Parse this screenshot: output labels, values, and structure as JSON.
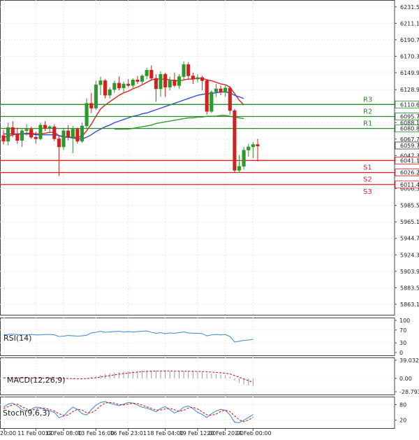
{
  "chart_data": [
    {
      "type": "candlestick",
      "panel": "price",
      "title": "",
      "ylim": [
        5850,
        6240
      ],
      "y_ticks": [
        "6231.50",
        "6211.10",
        "6190.70",
        "6170.30",
        "6149.90",
        "6128.90",
        "6108.50",
        "6088.10",
        "6067.70",
        "6047.30",
        "6026.90",
        "6006.50",
        "5985.50",
        "5965.10",
        "5944.70",
        "5924.30",
        "5903.90",
        "5883.50",
        "5863.10"
      ],
      "y_tick_values": [
        6231.5,
        6211.1,
        6190.7,
        6170.3,
        6149.9,
        6128.9,
        6108.5,
        6088.1,
        6067.7,
        6047.3,
        6026.9,
        6006.5,
        5985.5,
        5965.1,
        5944.7,
        5924.3,
        5903.9,
        5883.5,
        5863.1
      ],
      "x_ticks": [
        "20:00",
        "11 Feb 00:00",
        "12 Feb 08:00",
        "13 Feb 16:00",
        "16 Feb 23:01",
        "18 Feb 04:00",
        "19 Feb 12:00",
        "20 Feb 20:00",
        "24 Feb 00:00"
      ],
      "candles": [
        {
          "o": 6072,
          "h": 6079,
          "l": 6061,
          "c": 6065
        },
        {
          "o": 6065,
          "h": 6088,
          "l": 6060,
          "c": 6082
        },
        {
          "o": 6082,
          "h": 6090,
          "l": 6070,
          "c": 6074
        },
        {
          "o": 6074,
          "h": 6082,
          "l": 6062,
          "c": 6066
        },
        {
          "o": 6066,
          "h": 6080,
          "l": 6058,
          "c": 6078
        },
        {
          "o": 6078,
          "h": 6086,
          "l": 6072,
          "c": 6080
        },
        {
          "o": 6080,
          "h": 6083,
          "l": 6068,
          "c": 6070
        },
        {
          "o": 6070,
          "h": 6077,
          "l": 6062,
          "c": 6068
        },
        {
          "o": 6068,
          "h": 6088,
          "l": 6066,
          "c": 6085
        },
        {
          "o": 6085,
          "h": 6090,
          "l": 6078,
          "c": 6081
        },
        {
          "o": 6081,
          "h": 6085,
          "l": 6075,
          "c": 6083
        },
        {
          "o": 6083,
          "h": 6086,
          "l": 6065,
          "c": 6068
        },
        {
          "o": 6068,
          "h": 6072,
          "l": 6022,
          "c": 6058
        },
        {
          "o": 6058,
          "h": 6082,
          "l": 6054,
          "c": 6078
        },
        {
          "o": 6078,
          "h": 6085,
          "l": 6066,
          "c": 6070
        },
        {
          "o": 6070,
          "h": 6084,
          "l": 6050,
          "c": 6080
        },
        {
          "o": 6080,
          "h": 6082,
          "l": 6062,
          "c": 6065
        },
        {
          "o": 6065,
          "h": 6088,
          "l": 6063,
          "c": 6084
        },
        {
          "o": 6084,
          "h": 6118,
          "l": 6080,
          "c": 6112
        },
        {
          "o": 6112,
          "h": 6125,
          "l": 6100,
          "c": 6106
        },
        {
          "o": 6106,
          "h": 6140,
          "l": 6104,
          "c": 6135
        },
        {
          "o": 6135,
          "h": 6145,
          "l": 6122,
          "c": 6140
        },
        {
          "o": 6140,
          "h": 6142,
          "l": 6118,
          "c": 6122
        },
        {
          "o": 6122,
          "h": 6132,
          "l": 6118,
          "c": 6129
        },
        {
          "o": 6129,
          "h": 6140,
          "l": 6125,
          "c": 6137
        },
        {
          "o": 6137,
          "h": 6145,
          "l": 6128,
          "c": 6131
        },
        {
          "o": 6131,
          "h": 6139,
          "l": 6126,
          "c": 6136
        },
        {
          "o": 6136,
          "h": 6142,
          "l": 6132,
          "c": 6134
        },
        {
          "o": 6134,
          "h": 6143,
          "l": 6131,
          "c": 6141
        },
        {
          "o": 6141,
          "h": 6146,
          "l": 6136,
          "c": 6139
        },
        {
          "o": 6139,
          "h": 6148,
          "l": 6136,
          "c": 6146
        },
        {
          "o": 6146,
          "h": 6156,
          "l": 6142,
          "c": 6153
        },
        {
          "o": 6153,
          "h": 6159,
          "l": 6140,
          "c": 6143
        },
        {
          "o": 6143,
          "h": 6148,
          "l": 6114,
          "c": 6130
        },
        {
          "o": 6130,
          "h": 6152,
          "l": 6120,
          "c": 6148
        },
        {
          "o": 6148,
          "h": 6150,
          "l": 6120,
          "c": 6132
        },
        {
          "o": 6132,
          "h": 6145,
          "l": 6128,
          "c": 6141
        },
        {
          "o": 6141,
          "h": 6150,
          "l": 6132,
          "c": 6134
        },
        {
          "o": 6134,
          "h": 6148,
          "l": 6130,
          "c": 6145
        },
        {
          "o": 6145,
          "h": 6164,
          "l": 6140,
          "c": 6160
        },
        {
          "o": 6160,
          "h": 6163,
          "l": 6142,
          "c": 6146
        },
        {
          "o": 6146,
          "h": 6150,
          "l": 6136,
          "c": 6142
        },
        {
          "o": 6142,
          "h": 6148,
          "l": 6138,
          "c": 6144
        },
        {
          "o": 6144,
          "h": 6146,
          "l": 6128,
          "c": 6140
        },
        {
          "o": 6140,
          "h": 6142,
          "l": 6098,
          "c": 6102
        },
        {
          "o": 6102,
          "h": 6128,
          "l": 6100,
          "c": 6126
        },
        {
          "o": 6126,
          "h": 6136,
          "l": 6120,
          "c": 6130
        },
        {
          "o": 6130,
          "h": 6134,
          "l": 6122,
          "c": 6126
        },
        {
          "o": 6126,
          "h": 6134,
          "l": 6120,
          "c": 6131
        },
        {
          "o": 6131,
          "h": 6133,
          "l": 6098,
          "c": 6103
        },
        {
          "o": 6103,
          "h": 6105,
          "l": 6026,
          "c": 6029
        },
        {
          "o": 6029,
          "h": 6048,
          "l": 6026,
          "c": 6034
        },
        {
          "o": 6034,
          "h": 6058,
          "l": 6030,
          "c": 6054
        },
        {
          "o": 6054,
          "h": 6062,
          "l": 6046,
          "c": 6058
        },
        {
          "o": 6058,
          "h": 6064,
          "l": 6044,
          "c": 6061
        },
        {
          "o": 6061,
          "h": 6068,
          "l": 6040,
          "c": 6059
        }
      ],
      "ma_series": [
        {
          "color": "#e02020",
          "values": [
            6070,
            6071,
            6073,
            6074,
            6074,
            6075,
            6075,
            6074,
            6074,
            6075,
            6076,
            6076,
            6072,
            6070,
            6070,
            6070,
            6070,
            6071,
            6078,
            6086,
            6096,
            6105,
            6110,
            6114,
            6118,
            6122,
            6125,
            6127,
            6130,
            6132,
            6135,
            6138,
            6141,
            6142,
            6142,
            6142,
            6141,
            6140,
            6140,
            6141,
            6142,
            6142,
            6143,
            6143,
            6141,
            6140,
            6138,
            6136,
            6135,
            6132,
            6124,
            6116,
            6110
          ]
        },
        {
          "color": "#3050d0",
          "values": [
            6074,
            6074,
            6074,
            6074,
            6074,
            6074,
            6074,
            6073,
            6073,
            6073,
            6073,
            6073,
            6072,
            6071,
            6070,
            6069,
            6068,
            6068,
            6070,
            6073,
            6077,
            6080,
            6083,
            6085,
            6088,
            6090,
            6092,
            6094,
            6096,
            6097,
            6099,
            6100,
            6102,
            6104,
            6106,
            6108,
            6110,
            6112,
            6114,
            6116,
            6118,
            6120,
            6122,
            6123,
            6124,
            6124,
            6125,
            6126,
            6126,
            6125,
            6122,
            6120,
            6118
          ]
        },
        {
          "color": "#30a030",
          "values": [
            null,
            null,
            null,
            null,
            null,
            null,
            null,
            null,
            null,
            null,
            null,
            null,
            null,
            null,
            null,
            null,
            null,
            null,
            null,
            null,
            null,
            null,
            null,
            null,
            6080,
            6080,
            6080,
            6080,
            6081,
            6082,
            6083,
            6084,
            6085,
            6087,
            6088,
            6089,
            6090,
            6091,
            6092,
            6093,
            6094,
            6094,
            6095,
            6095,
            6096,
            6096,
            6096,
            6097,
            6097,
            6096,
            6095,
            6094,
            6093
          ]
        }
      ],
      "levels": [
        {
          "name": "R3",
          "value": 6110.6,
          "color": "#2a8a2a",
          "label": "6110.60"
        },
        {
          "name": "R2",
          "value": 6095.72,
          "color": "#2a8a2a",
          "label": "6095.72"
        },
        {
          "name": "R1",
          "value": 6080.84,
          "color": "#2a8a2a",
          "label": "6080.84"
        },
        {
          "name": "S1",
          "value": 6041.16,
          "color": "#e02020",
          "label": "6041.16"
        },
        {
          "name": "S2",
          "value": 6026.28,
          "color": "#e02020",
          "label": "6026.28"
        },
        {
          "name": "S3",
          "value": 6011.4,
          "color": "#e02020",
          "label": "6011.40"
        }
      ],
      "last_price": {
        "value": 6059.74,
        "label": "6059.74"
      },
      "levels_tick_label": "6088.10",
      "colors": {
        "up": "#2a9a2a",
        "down": "#d02020",
        "grid": "#e8e8e8"
      }
    },
    {
      "type": "line",
      "panel": "rsi",
      "title": "RSI(14)",
      "ylim": [
        0,
        100
      ],
      "y_ticks": [
        "100",
        "70",
        "30",
        "0"
      ],
      "y_tick_values": [
        100,
        70,
        30,
        0
      ],
      "values": [
        55,
        56,
        57,
        56,
        55,
        55,
        56,
        55,
        55,
        56,
        56,
        55,
        50,
        51,
        53,
        52,
        51,
        52,
        54,
        61,
        63,
        66,
        63,
        64,
        65,
        66,
        64,
        65,
        64,
        65,
        66,
        67,
        63,
        60,
        62,
        59,
        61,
        60,
        62,
        64,
        61,
        60,
        60,
        59,
        52,
        55,
        56,
        55,
        56,
        50,
        33,
        35,
        38,
        39,
        41
      ],
      "color": "#4a90d0"
    },
    {
      "type": "bar",
      "panel": "macd",
      "title": "MACD(12,26,9)",
      "ylim": [
        -28.793,
        39.032
      ],
      "y_ticks": [
        "39.032",
        "0.00",
        "-28.793"
      ],
      "y_tick_values": [
        39.032,
        0,
        -28.793
      ],
      "histogram": [
        1,
        1,
        1,
        0.5,
        0.5,
        0.5,
        0.3,
        0.1,
        0.2,
        0.5,
        0.6,
        0.4,
        -1,
        -1.5,
        -1.5,
        -1.8,
        -2,
        -1.5,
        1,
        3,
        5,
        8,
        9.5,
        11,
        12.5,
        13.5,
        14.5,
        15.5,
        16,
        16.5,
        17,
        17.3,
        17,
        16.5,
        16,
        15.5,
        15.4,
        15,
        15,
        15.2,
        15,
        14.5,
        14,
        13.5,
        11,
        10,
        9,
        8,
        7,
        4,
        -5,
        -10,
        -13,
        -15,
        -16
      ],
      "signal": [
        1,
        1,
        1,
        1,
        1,
        0.9,
        0.8,
        0.7,
        0.6,
        0.5,
        0.5,
        0.5,
        0.3,
        0,
        -0.3,
        -0.6,
        -0.8,
        -0.9,
        -0.5,
        0.5,
        1.5,
        3,
        4.5,
        6,
        7.5,
        9,
        10.5,
        11.5,
        12.5,
        13.5,
        14.5,
        15,
        15.5,
        15.8,
        15.9,
        15.9,
        15.8,
        15.7,
        15.6,
        15.5,
        15.4,
        15.2,
        15,
        14.8,
        14.2,
        13.5,
        12.8,
        12,
        11,
        9.5,
        6,
        2.5,
        -1.5,
        -5,
        -8
      ],
      "bar_color": "#999999",
      "signal_color": "#d02020"
    },
    {
      "type": "line",
      "panel": "stoch",
      "title": "Stoch(9,6,3)",
      "ylim": [
        0,
        100
      ],
      "y_ticks": [
        "80",
        "20"
      ],
      "y_tick_values": [
        80,
        20
      ],
      "k": [
        70,
        82,
        86,
        75,
        60,
        55,
        62,
        70,
        68,
        60,
        55,
        50,
        30,
        35,
        55,
        70,
        62,
        45,
        40,
        60,
        78,
        88,
        92,
        85,
        80,
        76,
        82,
        88,
        86,
        78,
        70,
        66,
        60,
        52,
        65,
        72,
        60,
        48,
        55,
        70,
        75,
        65,
        50,
        42,
        30,
        45,
        55,
        62,
        58,
        40,
        12,
        10,
        20,
        30,
        42
      ],
      "d": [
        65,
        72,
        80,
        82,
        72,
        63,
        59,
        62,
        66,
        66,
        61,
        55,
        45,
        38,
        40,
        53,
        62,
        59,
        49,
        48,
        59,
        75,
        86,
        88,
        86,
        80,
        79,
        82,
        85,
        84,
        78,
        71,
        65,
        59,
        59,
        63,
        66,
        60,
        54,
        58,
        67,
        70,
        63,
        52,
        41,
        39,
        43,
        54,
        58,
        53,
        37,
        21,
        14,
        20,
        31
      ],
      "k_color": "#4a90d0",
      "d_color": "#d02020"
    }
  ]
}
